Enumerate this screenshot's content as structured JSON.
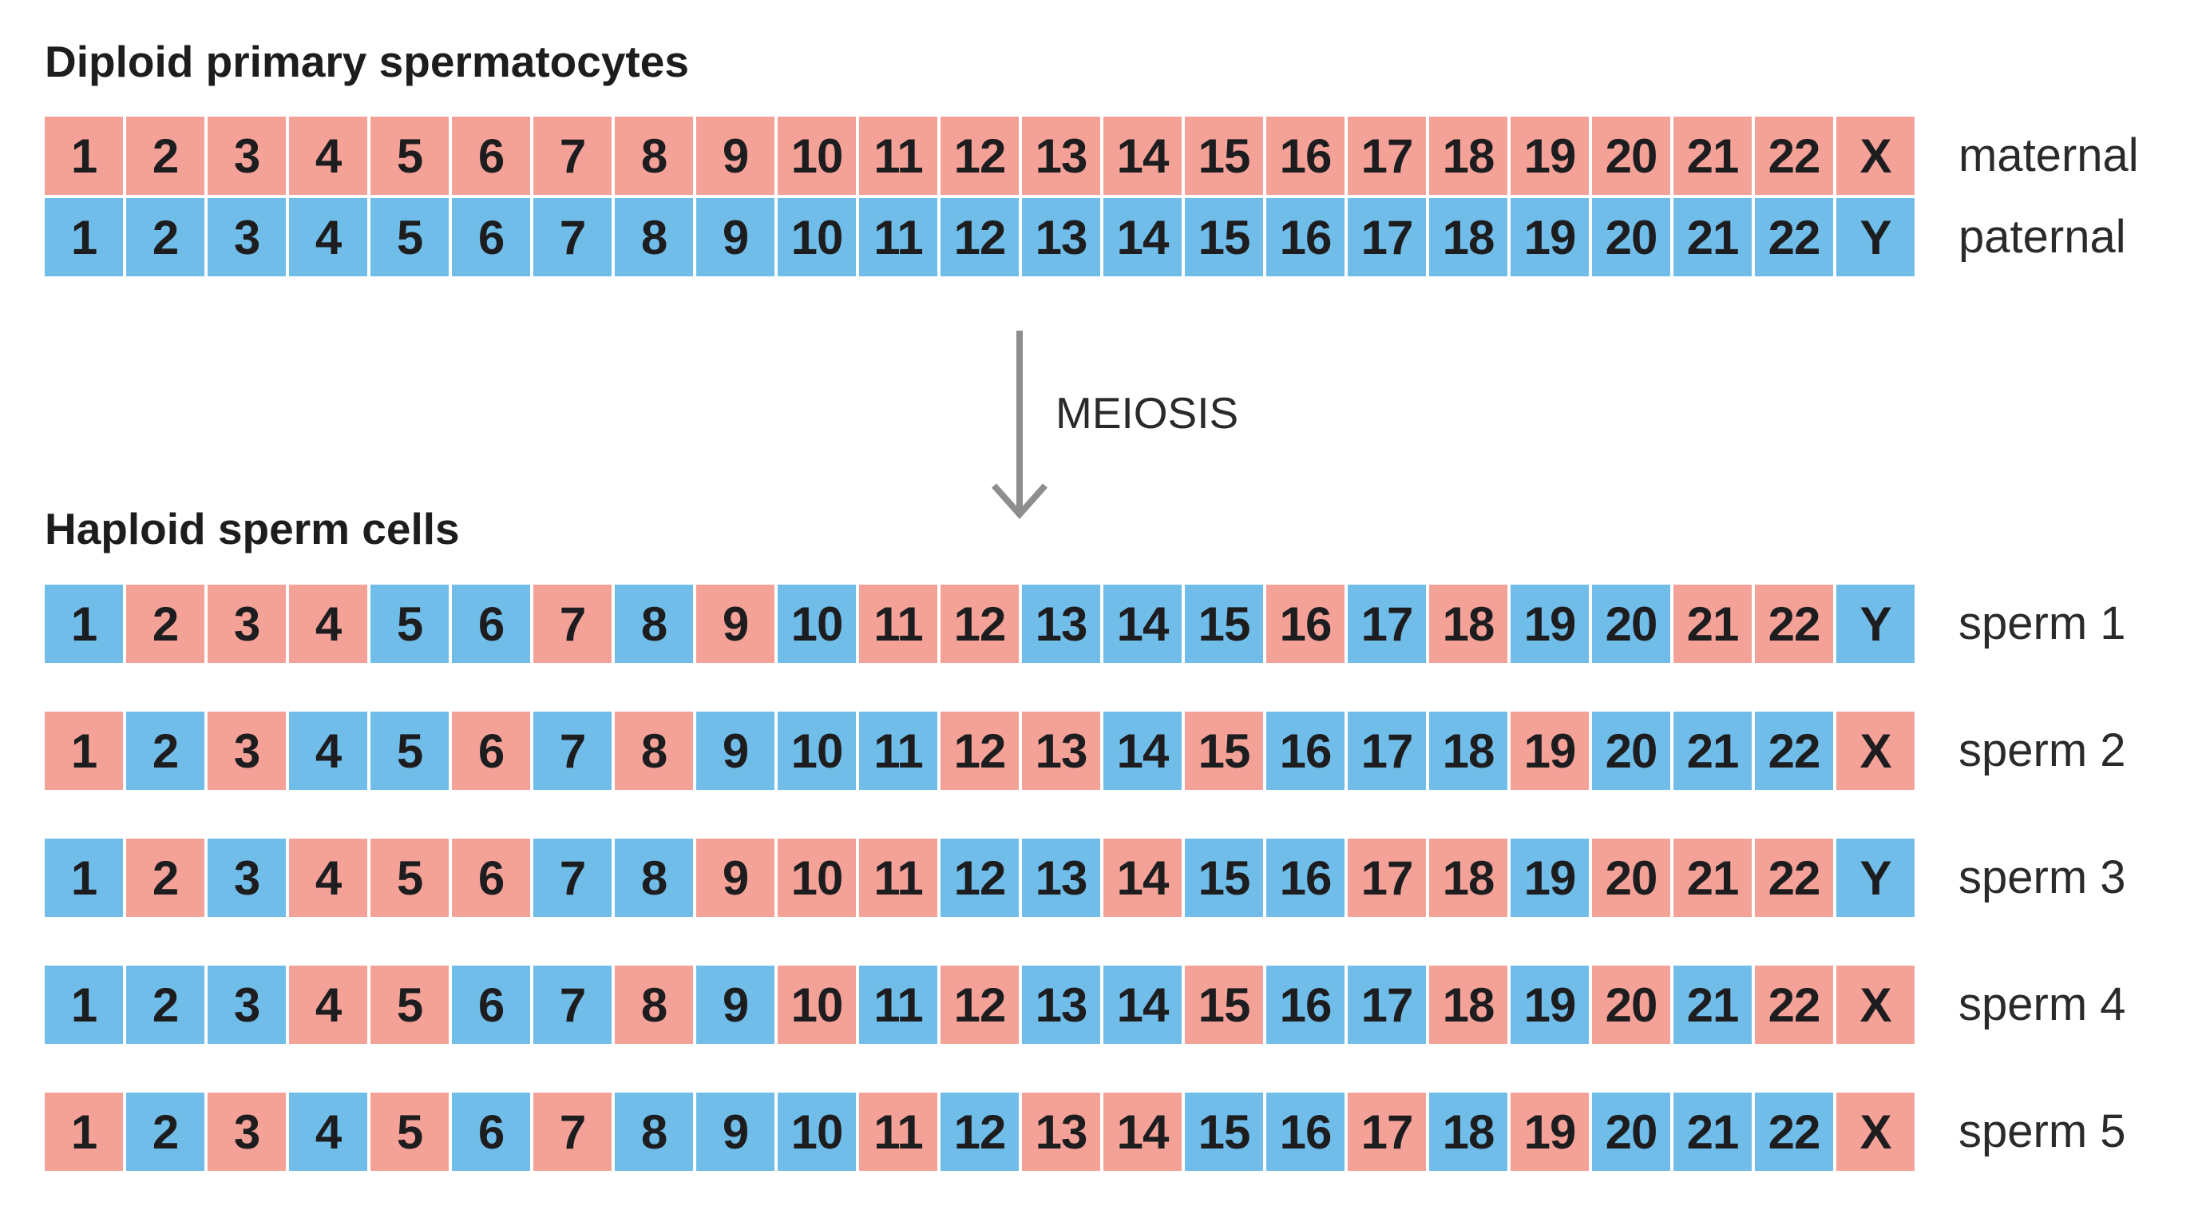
{
  "colors": {
    "maternal": "#f4a298",
    "paternal": "#71bde9",
    "arrow": "#8e8e8e"
  },
  "diploid": {
    "title": "Diploid primary spermatocytes",
    "rows": [
      {
        "label": "maternal",
        "cells": [
          {
            "t": "1",
            "c": "m"
          },
          {
            "t": "2",
            "c": "m"
          },
          {
            "t": "3",
            "c": "m"
          },
          {
            "t": "4",
            "c": "m"
          },
          {
            "t": "5",
            "c": "m"
          },
          {
            "t": "6",
            "c": "m"
          },
          {
            "t": "7",
            "c": "m"
          },
          {
            "t": "8",
            "c": "m"
          },
          {
            "t": "9",
            "c": "m"
          },
          {
            "t": "10",
            "c": "m"
          },
          {
            "t": "11",
            "c": "m"
          },
          {
            "t": "12",
            "c": "m"
          },
          {
            "t": "13",
            "c": "m"
          },
          {
            "t": "14",
            "c": "m"
          },
          {
            "t": "15",
            "c": "m"
          },
          {
            "t": "16",
            "c": "m"
          },
          {
            "t": "17",
            "c": "m"
          },
          {
            "t": "18",
            "c": "m"
          },
          {
            "t": "19",
            "c": "m"
          },
          {
            "t": "20",
            "c": "m"
          },
          {
            "t": "21",
            "c": "m"
          },
          {
            "t": "22",
            "c": "m"
          },
          {
            "t": "X",
            "c": "m"
          }
        ]
      },
      {
        "label": "paternal",
        "cells": [
          {
            "t": "1",
            "c": "p"
          },
          {
            "t": "2",
            "c": "p"
          },
          {
            "t": "3",
            "c": "p"
          },
          {
            "t": "4",
            "c": "p"
          },
          {
            "t": "5",
            "c": "p"
          },
          {
            "t": "6",
            "c": "p"
          },
          {
            "t": "7",
            "c": "p"
          },
          {
            "t": "8",
            "c": "p"
          },
          {
            "t": "9",
            "c": "p"
          },
          {
            "t": "10",
            "c": "p"
          },
          {
            "t": "11",
            "c": "p"
          },
          {
            "t": "12",
            "c": "p"
          },
          {
            "t": "13",
            "c": "p"
          },
          {
            "t": "14",
            "c": "p"
          },
          {
            "t": "15",
            "c": "p"
          },
          {
            "t": "16",
            "c": "p"
          },
          {
            "t": "17",
            "c": "p"
          },
          {
            "t": "18",
            "c": "p"
          },
          {
            "t": "19",
            "c": "p"
          },
          {
            "t": "20",
            "c": "p"
          },
          {
            "t": "21",
            "c": "p"
          },
          {
            "t": "22",
            "c": "p"
          },
          {
            "t": "Y",
            "c": "p"
          }
        ]
      }
    ]
  },
  "process": {
    "label": "MEIOSIS",
    "arrow_icon": "down-arrow-icon"
  },
  "haploid": {
    "title": "Haploid sperm cells",
    "rows": [
      {
        "label": "sperm 1",
        "cells": [
          {
            "t": "1",
            "c": "p"
          },
          {
            "t": "2",
            "c": "m"
          },
          {
            "t": "3",
            "c": "m"
          },
          {
            "t": "4",
            "c": "m"
          },
          {
            "t": "5",
            "c": "p"
          },
          {
            "t": "6",
            "c": "p"
          },
          {
            "t": "7",
            "c": "m"
          },
          {
            "t": "8",
            "c": "p"
          },
          {
            "t": "9",
            "c": "m"
          },
          {
            "t": "10",
            "c": "p"
          },
          {
            "t": "11",
            "c": "m"
          },
          {
            "t": "12",
            "c": "m"
          },
          {
            "t": "13",
            "c": "p"
          },
          {
            "t": "14",
            "c": "p"
          },
          {
            "t": "15",
            "c": "p"
          },
          {
            "t": "16",
            "c": "m"
          },
          {
            "t": "17",
            "c": "p"
          },
          {
            "t": "18",
            "c": "m"
          },
          {
            "t": "19",
            "c": "p"
          },
          {
            "t": "20",
            "c": "p"
          },
          {
            "t": "21",
            "c": "m"
          },
          {
            "t": "22",
            "c": "m"
          },
          {
            "t": "Y",
            "c": "p"
          }
        ]
      },
      {
        "label": "sperm 2",
        "cells": [
          {
            "t": "1",
            "c": "m"
          },
          {
            "t": "2",
            "c": "p"
          },
          {
            "t": "3",
            "c": "m"
          },
          {
            "t": "4",
            "c": "p"
          },
          {
            "t": "5",
            "c": "p"
          },
          {
            "t": "6",
            "c": "m"
          },
          {
            "t": "7",
            "c": "p"
          },
          {
            "t": "8",
            "c": "m"
          },
          {
            "t": "9",
            "c": "p"
          },
          {
            "t": "10",
            "c": "p"
          },
          {
            "t": "11",
            "c": "p"
          },
          {
            "t": "12",
            "c": "m"
          },
          {
            "t": "13",
            "c": "m"
          },
          {
            "t": "14",
            "c": "p"
          },
          {
            "t": "15",
            "c": "m"
          },
          {
            "t": "16",
            "c": "p"
          },
          {
            "t": "17",
            "c": "p"
          },
          {
            "t": "18",
            "c": "p"
          },
          {
            "t": "19",
            "c": "m"
          },
          {
            "t": "20",
            "c": "p"
          },
          {
            "t": "21",
            "c": "p"
          },
          {
            "t": "22",
            "c": "p"
          },
          {
            "t": "X",
            "c": "m"
          }
        ]
      },
      {
        "label": "sperm 3",
        "cells": [
          {
            "t": "1",
            "c": "p"
          },
          {
            "t": "2",
            "c": "m"
          },
          {
            "t": "3",
            "c": "p"
          },
          {
            "t": "4",
            "c": "m"
          },
          {
            "t": "5",
            "c": "m"
          },
          {
            "t": "6",
            "c": "m"
          },
          {
            "t": "7",
            "c": "p"
          },
          {
            "t": "8",
            "c": "p"
          },
          {
            "t": "9",
            "c": "m"
          },
          {
            "t": "10",
            "c": "m"
          },
          {
            "t": "11",
            "c": "m"
          },
          {
            "t": "12",
            "c": "p"
          },
          {
            "t": "13",
            "c": "p"
          },
          {
            "t": "14",
            "c": "m"
          },
          {
            "t": "15",
            "c": "p"
          },
          {
            "t": "16",
            "c": "p"
          },
          {
            "t": "17",
            "c": "m"
          },
          {
            "t": "18",
            "c": "m"
          },
          {
            "t": "19",
            "c": "p"
          },
          {
            "t": "20",
            "c": "m"
          },
          {
            "t": "21",
            "c": "m"
          },
          {
            "t": "22",
            "c": "m"
          },
          {
            "t": "Y",
            "c": "p"
          }
        ]
      },
      {
        "label": "sperm 4",
        "cells": [
          {
            "t": "1",
            "c": "p"
          },
          {
            "t": "2",
            "c": "p"
          },
          {
            "t": "3",
            "c": "p"
          },
          {
            "t": "4",
            "c": "m"
          },
          {
            "t": "5",
            "c": "m"
          },
          {
            "t": "6",
            "c": "p"
          },
          {
            "t": "7",
            "c": "p"
          },
          {
            "t": "8",
            "c": "m"
          },
          {
            "t": "9",
            "c": "p"
          },
          {
            "t": "10",
            "c": "m"
          },
          {
            "t": "11",
            "c": "p"
          },
          {
            "t": "12",
            "c": "m"
          },
          {
            "t": "13",
            "c": "p"
          },
          {
            "t": "14",
            "c": "p"
          },
          {
            "t": "15",
            "c": "m"
          },
          {
            "t": "16",
            "c": "p"
          },
          {
            "t": "17",
            "c": "p"
          },
          {
            "t": "18",
            "c": "m"
          },
          {
            "t": "19",
            "c": "p"
          },
          {
            "t": "20",
            "c": "m"
          },
          {
            "t": "21",
            "c": "p"
          },
          {
            "t": "22",
            "c": "m"
          },
          {
            "t": "X",
            "c": "m"
          }
        ]
      },
      {
        "label": "sperm 5",
        "cells": [
          {
            "t": "1",
            "c": "m"
          },
          {
            "t": "2",
            "c": "p"
          },
          {
            "t": "3",
            "c": "m"
          },
          {
            "t": "4",
            "c": "p"
          },
          {
            "t": "5",
            "c": "m"
          },
          {
            "t": "6",
            "c": "p"
          },
          {
            "t": "7",
            "c": "m"
          },
          {
            "t": "8",
            "c": "p"
          },
          {
            "t": "9",
            "c": "p"
          },
          {
            "t": "10",
            "c": "p"
          },
          {
            "t": "11",
            "c": "m"
          },
          {
            "t": "12",
            "c": "p"
          },
          {
            "t": "13",
            "c": "m"
          },
          {
            "t": "14",
            "c": "m"
          },
          {
            "t": "15",
            "c": "p"
          },
          {
            "t": "16",
            "c": "p"
          },
          {
            "t": "17",
            "c": "m"
          },
          {
            "t": "18",
            "c": "p"
          },
          {
            "t": "19",
            "c": "m"
          },
          {
            "t": "20",
            "c": "p"
          },
          {
            "t": "21",
            "c": "p"
          },
          {
            "t": "22",
            "c": "p"
          },
          {
            "t": "X",
            "c": "m"
          }
        ]
      }
    ]
  }
}
